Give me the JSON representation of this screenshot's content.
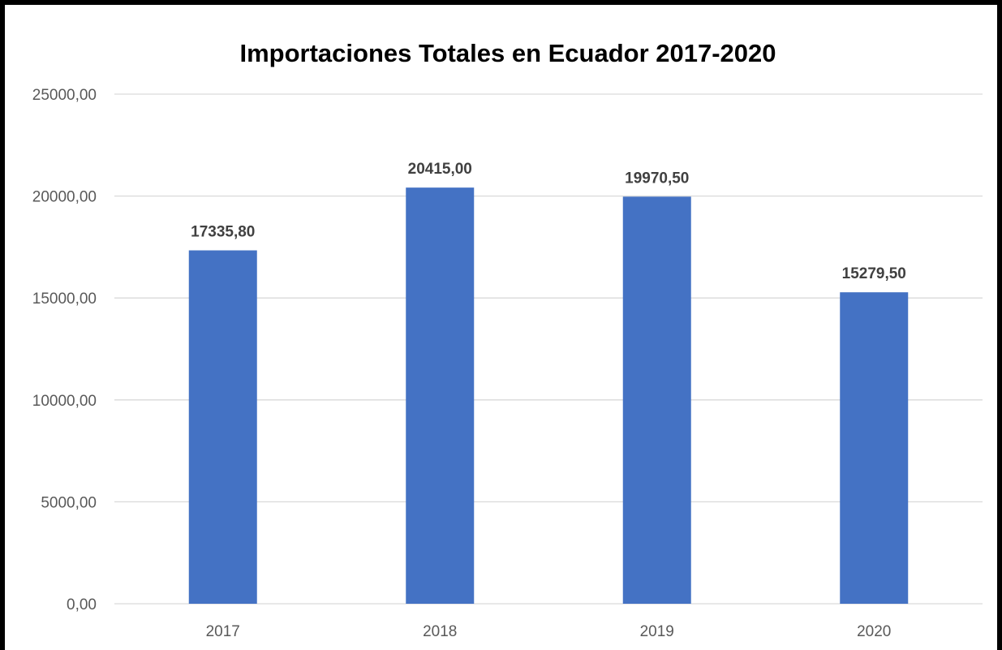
{
  "chart_data": {
    "type": "bar",
    "title": "Importaciones Totales en Ecuador 2017-2020",
    "xlabel": "",
    "ylabel": "",
    "categories": [
      "2017",
      "2018",
      "2019",
      "2020"
    ],
    "values": [
      17335.8,
      20415.0,
      19970.5,
      15279.5
    ],
    "value_labels": [
      "17335,80",
      "20415,00",
      "19970,50",
      "15279,50"
    ],
    "ylim": [
      0,
      25000
    ],
    "y_ticks": [
      0,
      5000,
      10000,
      15000,
      20000,
      25000
    ],
    "y_tick_labels": [
      "0,00",
      "5000,00",
      "10000,00",
      "15000,00",
      "20000,00",
      "25000,00"
    ],
    "grid": true,
    "legend": "none",
    "bar_color": "#4472C4",
    "grid_color": "#D9D9D9"
  }
}
